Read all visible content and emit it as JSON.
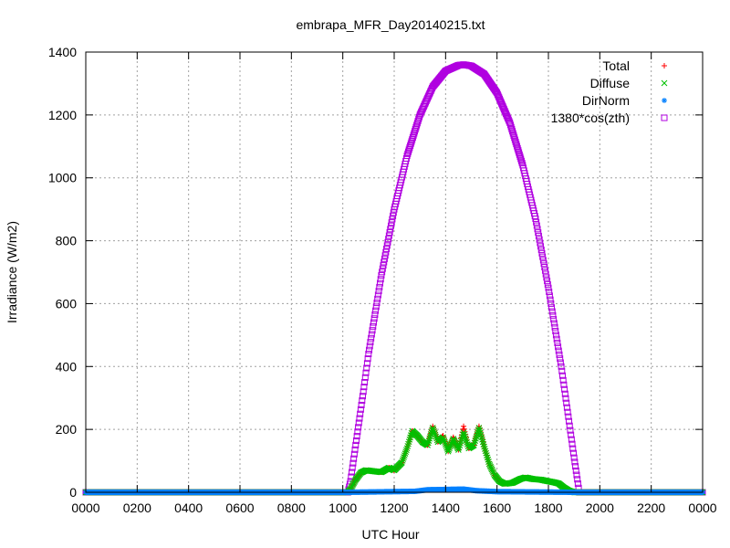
{
  "chart_data": {
    "type": "scatter",
    "title": "embrapa_MFR_Day20140215.txt",
    "xlabel": "UTC Hour",
    "ylabel": "Irradiance (W/m2)",
    "xlim": [
      0,
      24
    ],
    "ylim": [
      0,
      1400
    ],
    "x_ticks": [
      {
        "value": 0,
        "label": "0000"
      },
      {
        "value": 2,
        "label": "0200"
      },
      {
        "value": 4,
        "label": "0400"
      },
      {
        "value": 6,
        "label": "0600"
      },
      {
        "value": 8,
        "label": "0800"
      },
      {
        "value": 10,
        "label": "1000"
      },
      {
        "value": 12,
        "label": "1200"
      },
      {
        "value": 14,
        "label": "1400"
      },
      {
        "value": 16,
        "label": "1600"
      },
      {
        "value": 18,
        "label": "1800"
      },
      {
        "value": 20,
        "label": "2000"
      },
      {
        "value": 22,
        "label": "2200"
      },
      {
        "value": 24,
        "label": "0000"
      }
    ],
    "y_ticks": [
      0,
      200,
      400,
      600,
      800,
      1000,
      1200,
      1400
    ],
    "grid": true,
    "legend_position": "top-right",
    "series": [
      {
        "name": "1380*cos(zth)",
        "marker": "square",
        "color": "#b000e0",
        "points": [
          [
            0,
            0
          ],
          [
            10.2,
            0
          ],
          [
            10.3,
            35
          ],
          [
            10.5,
            150
          ],
          [
            10.8,
            320
          ],
          [
            11,
            440
          ],
          [
            11.5,
            690
          ],
          [
            12,
            900
          ],
          [
            12.5,
            1070
          ],
          [
            13,
            1200
          ],
          [
            13.5,
            1290
          ],
          [
            14,
            1340
          ],
          [
            14.5,
            1358
          ],
          [
            14.7,
            1360
          ],
          [
            15,
            1356
          ],
          [
            15.5,
            1330
          ],
          [
            16,
            1270
          ],
          [
            16.5,
            1175
          ],
          [
            17,
            1040
          ],
          [
            17.5,
            870
          ],
          [
            18,
            650
          ],
          [
            18.5,
            400
          ],
          [
            19,
            110
          ],
          [
            19.2,
            0
          ],
          [
            24,
            0
          ]
        ]
      },
      {
        "name": "Total",
        "marker": "plus",
        "color": "#ff0000",
        "points": [
          [
            0,
            0
          ],
          [
            10.2,
            0
          ],
          [
            10.3,
            10
          ],
          [
            10.5,
            40
          ],
          [
            10.7,
            62
          ],
          [
            10.9,
            70
          ],
          [
            11.2,
            67
          ],
          [
            11.5,
            64
          ],
          [
            11.8,
            78
          ],
          [
            12,
            70
          ],
          [
            12.3,
            95
          ],
          [
            12.5,
            140
          ],
          [
            12.7,
            195
          ],
          [
            12.9,
            180
          ],
          [
            13.1,
            160
          ],
          [
            13.3,
            150
          ],
          [
            13.5,
            210
          ],
          [
            13.7,
            160
          ],
          [
            13.9,
            180
          ],
          [
            14.1,
            130
          ],
          [
            14.3,
            175
          ],
          [
            14.5,
            135
          ],
          [
            14.7,
            210
          ],
          [
            14.9,
            140
          ],
          [
            15.1,
            150
          ],
          [
            15.3,
            210
          ],
          [
            15.5,
            145
          ],
          [
            15.7,
            90
          ],
          [
            15.9,
            55
          ],
          [
            16.1,
            35
          ],
          [
            16.3,
            27
          ],
          [
            16.6,
            30
          ],
          [
            16.9,
            42
          ],
          [
            17.1,
            47
          ],
          [
            17.4,
            42
          ],
          [
            17.7,
            40
          ],
          [
            18,
            35
          ],
          [
            18.2,
            32
          ],
          [
            18.4,
            28
          ],
          [
            18.6,
            15
          ],
          [
            18.8,
            5
          ],
          [
            19,
            0
          ],
          [
            24,
            0
          ]
        ]
      },
      {
        "name": "Diffuse",
        "marker": "x",
        "color": "#00c000",
        "points": [
          [
            0,
            0
          ],
          [
            10.2,
            0
          ],
          [
            10.3,
            10
          ],
          [
            10.5,
            40
          ],
          [
            10.7,
            62
          ],
          [
            10.9,
            70
          ],
          [
            11.2,
            67
          ],
          [
            11.5,
            64
          ],
          [
            11.8,
            78
          ],
          [
            12,
            70
          ],
          [
            12.3,
            95
          ],
          [
            12.5,
            140
          ],
          [
            12.7,
            195
          ],
          [
            12.9,
            180
          ],
          [
            13.1,
            160
          ],
          [
            13.3,
            150
          ],
          [
            13.5,
            205
          ],
          [
            13.7,
            160
          ],
          [
            13.9,
            175
          ],
          [
            14.1,
            130
          ],
          [
            14.3,
            170
          ],
          [
            14.5,
            135
          ],
          [
            14.7,
            190
          ],
          [
            14.9,
            140
          ],
          [
            15.1,
            150
          ],
          [
            15.3,
            205
          ],
          [
            15.5,
            145
          ],
          [
            15.7,
            90
          ],
          [
            15.9,
            55
          ],
          [
            16.1,
            35
          ],
          [
            16.3,
            27
          ],
          [
            16.6,
            30
          ],
          [
            16.9,
            42
          ],
          [
            17.1,
            47
          ],
          [
            17.4,
            42
          ],
          [
            17.7,
            40
          ],
          [
            18,
            35
          ],
          [
            18.2,
            32
          ],
          [
            18.4,
            28
          ],
          [
            18.6,
            15
          ],
          [
            18.8,
            5
          ],
          [
            19,
            0
          ],
          [
            24,
            0
          ]
        ]
      },
      {
        "name": "DirNorm",
        "marker": "star",
        "color": "#0080ff",
        "points": [
          [
            0,
            0
          ],
          [
            10.2,
            0
          ],
          [
            12.8,
            3
          ],
          [
            13.3,
            8
          ],
          [
            14.7,
            10
          ],
          [
            15.2,
            5
          ],
          [
            16,
            2
          ],
          [
            19,
            0
          ],
          [
            24,
            0
          ]
        ]
      }
    ]
  }
}
